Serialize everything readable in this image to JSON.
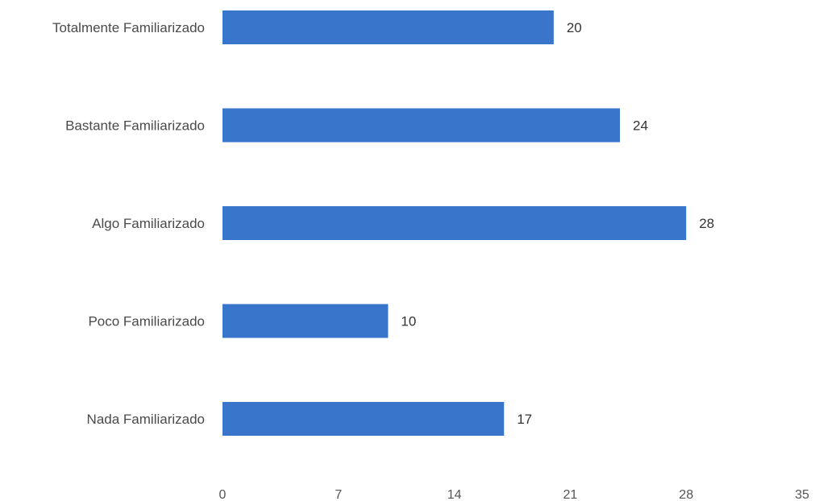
{
  "chart_data": {
    "type": "bar",
    "orientation": "horizontal",
    "categories": [
      "Totalmente Familiarizado",
      "Bastante Familiarizado",
      "Algo Familiarizado",
      "Poco Familiarizado",
      "Nada Familiarizado"
    ],
    "values": [
      20,
      24,
      28,
      10,
      17
    ],
    "value_labels": [
      "20",
      "24",
      "28",
      "10",
      "17"
    ],
    "xlim": [
      0,
      35
    ],
    "xticks": [
      0,
      7,
      14,
      21,
      28,
      35
    ],
    "xtick_labels": [
      "0",
      "7",
      "14",
      "21",
      "28",
      "35"
    ],
    "title": "",
    "xlabel": "",
    "ylabel": "",
    "grid": false,
    "legend": "none",
    "bar_color": "#3A75CC"
  }
}
